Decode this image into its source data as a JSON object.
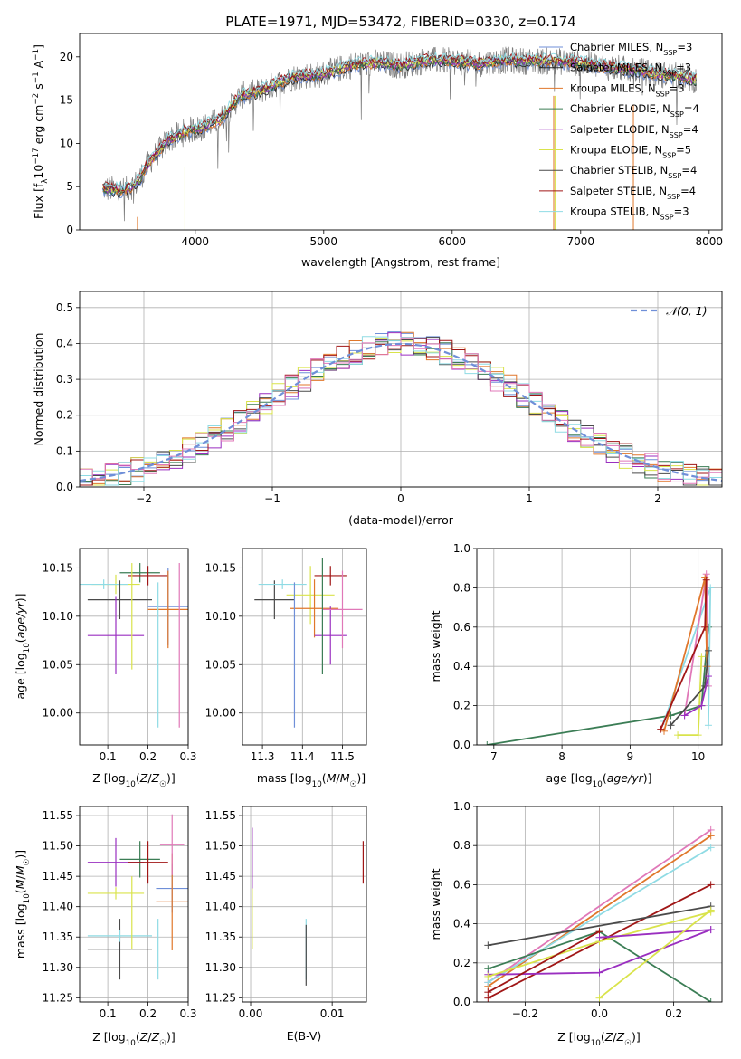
{
  "chart_data": [
    {
      "id": "spectrum",
      "type": "line",
      "title": "PLATE=1971, MJD=53472, FIBERID=0330, z=0.174",
      "xlabel": "wavelength [Angstrom, rest frame]",
      "ylabel_parts": [
        "Flux [f",
        "λ",
        "10",
        "−17",
        " erg cm",
        "−2",
        " s",
        "−1",
        " A",
        "−1",
        "]"
      ],
      "xlim": [
        3100,
        8100
      ],
      "ylim": [
        0,
        22.7
      ],
      "xticks": [
        4000,
        5000,
        6000,
        7000,
        8000
      ],
      "yticks": [
        0,
        5,
        10,
        15,
        20
      ],
      "grid": false,
      "legend_position": "upper right",
      "continuum": {
        "x": [
          3280,
          3450,
          3550,
          3650,
          3800,
          3950,
          4050,
          4200,
          4350,
          4500,
          4650,
          4800,
          5000,
          5200,
          5400,
          5600,
          5800,
          6000,
          6200,
          6400,
          6600,
          6800,
          7000,
          7200,
          7400,
          7600,
          7800,
          7900
        ],
        "y": [
          4.8,
          4.5,
          5.5,
          8.0,
          10.5,
          11.5,
          11.8,
          12.8,
          15.5,
          16.0,
          17.0,
          17.8,
          18.0,
          19.0,
          19.3,
          19.0,
          19.6,
          19.5,
          19.2,
          19.6,
          19.5,
          19.5,
          19.3,
          18.8,
          18.5,
          18.0,
          17.7,
          17.3
        ]
      },
      "series": [
        {
          "name": "Chabrier MILES",
          "nssp": "3",
          "color": "#6f8fd8"
        },
        {
          "name": "Salpeter MILES",
          "nssp": "3",
          "color": "#2b2b2b"
        },
        {
          "name": "Kroupa MILES",
          "nssp": "3",
          "color": "#e0772b"
        },
        {
          "name": "Chabrier ELODIE",
          "nssp": "4",
          "color": "#3b7d55"
        },
        {
          "name": "Salpeter ELODIE",
          "nssp": "4",
          "color": "#9a2fc0"
        },
        {
          "name": "Kroupa ELODIE",
          "nssp": "5",
          "color": "#d9e34b"
        },
        {
          "name": "Chabrier STELIB",
          "nssp": "4",
          "color": "#4a4a4a"
        },
        {
          "name": "Salpeter STELIB",
          "nssp": "4",
          "color": "#a01616"
        },
        {
          "name": "Kroupa STELIB",
          "nssp": "3",
          "color": "#8fdbe4"
        }
      ],
      "nssp_label": [
        "N",
        "SSP",
        "="
      ]
    },
    {
      "id": "residuals",
      "type": "histogram",
      "xlabel": "(data-model)/error",
      "ylabel": "Normed distribution",
      "xlim": [
        -2.5,
        2.5
      ],
      "ylim": [
        0,
        0.545
      ],
      "xticks": [
        -2,
        -1,
        0,
        1,
        2
      ],
      "yticks": [
        0,
        0.1,
        0.2,
        0.3,
        0.4,
        0.5
      ],
      "grid": true,
      "legend": "𝒩(0, 1)",
      "legend_position": "upper right",
      "bin_width": 0.1,
      "series_colors": [
        "#6f8fd8",
        "#e0772b",
        "#3b7d55",
        "#9a2fc0",
        "#d9e34b",
        "#4a4a4a",
        "#a01616",
        "#8fdbe4",
        "#e078b8"
      ],
      "gaussian": {
        "mean": 0,
        "sigma": 1,
        "color": "#6f8fd8"
      }
    },
    {
      "id": "age-vs-Z",
      "type": "errorbar",
      "xlabel": "Z [log10(Z/Z☉)]",
      "ylabel": "age  [log10(age/yr)]",
      "xlim": [
        0.03,
        0.3
      ],
      "ylim": [
        9.967,
        10.17
      ],
      "xticks": [
        0.1,
        0.2,
        0.3
      ],
      "yticks": [
        10.0,
        10.05,
        10.1,
        10.15
      ],
      "grid": true,
      "points": [
        {
          "x": 0.12,
          "xe": 0.06,
          "y": 10.133,
          "ye": 0.01,
          "c": "#d9e34b"
        },
        {
          "x": 0.09,
          "xe": 0.06,
          "y": 10.133,
          "ye": 0.005,
          "c": "#8fdbe4"
        },
        {
          "x": 0.13,
          "xe": 0.08,
          "y": 10.117,
          "ye": 0.02,
          "c": "#4a4a4a"
        },
        {
          "x": 0.12,
          "xe": 0.07,
          "y": 10.08,
          "ye": 0.04,
          "c": "#9a2fc0"
        },
        {
          "x": 0.18,
          "xe": 0.05,
          "y": 10.145,
          "ye": 0.01,
          "c": "#3b7d55"
        },
        {
          "x": 0.2,
          "xe": 0.05,
          "y": 10.142,
          "ye": 0.01,
          "c": "#a01616"
        },
        {
          "x": 0.25,
          "xe": 0.05,
          "y": 10.11,
          "ye": 0.04,
          "c": "#6f8fd8"
        },
        {
          "x": 0.25,
          "xe": 0.05,
          "y": 10.107,
          "ye": 0.04,
          "c": "#e0772b"
        },
        {
          "x": 0.16,
          "xe": 0.0,
          "y": 10.1,
          "ye": 0.055,
          "c": "#d9e34b"
        },
        {
          "x": 0.225,
          "xe": 0.0,
          "y": 10.06,
          "ye": 0.075,
          "c": "#8fdbe4"
        },
        {
          "x": 0.278,
          "xe": 0.0,
          "y": 10.07,
          "ye": 0.085,
          "c": "#e078b8"
        }
      ]
    },
    {
      "id": "age-vs-mass",
      "type": "errorbar",
      "xlabel": "mass [log10(M/M☉)]",
      "xlim": [
        11.25,
        11.56
      ],
      "ylim": [
        9.967,
        10.17
      ],
      "xticks": [
        11.3,
        11.4,
        11.5
      ],
      "yticks": [
        10.0,
        10.05,
        10.1,
        10.15
      ],
      "grid": true,
      "points": [
        {
          "x": 11.33,
          "xe": 0.05,
          "y": 10.117,
          "ye": 0.02,
          "c": "#4a4a4a"
        },
        {
          "x": 11.35,
          "xe": 0.06,
          "y": 10.133,
          "ye": 0.005,
          "c": "#8fdbe4"
        },
        {
          "x": 11.42,
          "xe": 0.06,
          "y": 10.122,
          "ye": 0.03,
          "c": "#d9e34b"
        },
        {
          "x": 11.43,
          "xe": 0.06,
          "y": 10.108,
          "ye": 0.03,
          "c": "#e0772b"
        },
        {
          "x": 11.47,
          "xe": 0.04,
          "y": 10.08,
          "ye": 0.03,
          "c": "#9a2fc0"
        },
        {
          "x": 11.47,
          "xe": 0.04,
          "y": 10.142,
          "ye": 0.01,
          "c": "#a01616"
        },
        {
          "x": 11.5,
          "xe": 0.05,
          "y": 10.107,
          "ye": 0.04,
          "c": "#e078b8"
        },
        {
          "x": 11.45,
          "xe": 0.0,
          "y": 10.1,
          "ye": 0.06,
          "c": "#3b7d55"
        },
        {
          "x": 11.38,
          "xe": 0.0,
          "y": 10.06,
          "ye": 0.075,
          "c": "#6f8fd8"
        }
      ]
    },
    {
      "id": "massweight-vs-age",
      "type": "line",
      "xlabel": "age  [log10(age/yr)]",
      "ylabel": "mass weight",
      "xlim": [
        6.75,
        10.35
      ],
      "ylim": [
        0,
        1
      ],
      "xticks": [
        7,
        8,
        9,
        10
      ],
      "yticks": [
        0,
        0.2,
        0.4,
        0.6,
        0.8,
        1.0
      ],
      "grid": true,
      "series": [
        {
          "c": "#3b7d55",
          "x": [
            6.9,
            9.6,
            10.05,
            10.15
          ],
          "y": [
            0.0,
            0.15,
            0.2,
            0.6
          ]
        },
        {
          "c": "#8fdbe4",
          "x": [
            9.5,
            10.18,
            10.15
          ],
          "y": [
            0.12,
            0.8,
            0.1
          ]
        },
        {
          "c": "#e078b8",
          "x": [
            9.8,
            10.12,
            10.15
          ],
          "y": [
            0.15,
            0.87,
            0.3
          ]
        },
        {
          "c": "#e0772b",
          "x": [
            9.5,
            10.1,
            10.13
          ],
          "y": [
            0.07,
            0.85,
            0.4
          ]
        },
        {
          "c": "#a01616",
          "x": [
            9.45,
            10.1,
            10.12
          ],
          "y": [
            0.08,
            0.6,
            0.84
          ]
        },
        {
          "c": "#d9e34b",
          "x": [
            9.7,
            10.0,
            10.05
          ],
          "y": [
            0.05,
            0.05,
            0.45
          ]
        },
        {
          "c": "#4a4a4a",
          "x": [
            9.6,
            10.1,
            10.15
          ],
          "y": [
            0.1,
            0.3,
            0.48
          ]
        },
        {
          "c": "#9a2fc0",
          "x": [
            9.8,
            10.05,
            10.15
          ],
          "y": [
            0.15,
            0.2,
            0.35
          ]
        }
      ]
    },
    {
      "id": "mass-vs-Z",
      "type": "errorbar",
      "xlabel": "Z [log10(Z/Z☉)]",
      "ylabel": "mass [log10(M/M☉)]",
      "xlim": [
        0.03,
        0.3
      ],
      "ylim": [
        11.243,
        11.565
      ],
      "xticks": [
        0.1,
        0.2,
        0.3
      ],
      "yticks": [
        11.25,
        11.3,
        11.35,
        11.4,
        11.45,
        11.5,
        11.55
      ],
      "grid": true,
      "points": [
        {
          "x": 0.13,
          "xe": 0.08,
          "y": 11.33,
          "ye": 0.05,
          "c": "#4a4a4a"
        },
        {
          "x": 0.13,
          "xe": 0.08,
          "y": 11.352,
          "ye": 0.01,
          "c": "#8fdbe4"
        },
        {
          "x": 0.12,
          "xe": 0.07,
          "y": 11.422,
          "ye": 0.01,
          "c": "#d9e34b"
        },
        {
          "x": 0.12,
          "xe": 0.07,
          "y": 11.473,
          "ye": 0.04,
          "c": "#9a2fc0"
        },
        {
          "x": 0.18,
          "xe": 0.05,
          "y": 11.478,
          "ye": 0.03,
          "c": "#3b7d55"
        },
        {
          "x": 0.2,
          "xe": 0.05,
          "y": 11.473,
          "ye": 0.035,
          "c": "#a01616"
        },
        {
          "x": 0.26,
          "xe": 0.04,
          "y": 11.43,
          "ye": 0.04,
          "c": "#6f8fd8"
        },
        {
          "x": 0.26,
          "xe": 0.04,
          "y": 11.408,
          "ye": 0.08,
          "c": "#e0772b"
        },
        {
          "x": 0.26,
          "xe": 0.03,
          "y": 11.502,
          "ye": 0.05,
          "c": "#e078b8"
        },
        {
          "x": 0.225,
          "xe": 0.0,
          "y": 11.33,
          "ye": 0.05,
          "c": "#8fdbe4"
        },
        {
          "x": 0.16,
          "xe": 0.0,
          "y": 11.39,
          "ye": 0.06,
          "c": "#d9e34b"
        }
      ]
    },
    {
      "id": "mass-vs-EBV",
      "type": "errorbar",
      "xlabel": "E(B-V)",
      "xlim": [
        -0.001,
        0.0142
      ],
      "ylim": [
        11.243,
        11.565
      ],
      "xticks": [
        0.0,
        0.01
      ],
      "xtick_labels": [
        "0.00",
        "0.01"
      ],
      "yticks": [
        11.25,
        11.3,
        11.35,
        11.4,
        11.45,
        11.5,
        11.55
      ],
      "grid": true,
      "points": [
        {
          "x": 0.0002,
          "xe": 0,
          "y": 11.48,
          "ye": 0.05,
          "c": "#9a2fc0"
        },
        {
          "x": 0.0002,
          "xe": 0,
          "y": 11.38,
          "ye": 0.05,
          "c": "#d9e34b"
        },
        {
          "x": 0.0068,
          "xe": 0,
          "y": 11.33,
          "ye": 0.05,
          "c": "#8fdbe4"
        },
        {
          "x": 0.0068,
          "xe": 0,
          "y": 11.32,
          "ye": 0.05,
          "c": "#4a4a4a"
        },
        {
          "x": 0.0138,
          "xe": 0,
          "y": 11.473,
          "ye": 0.035,
          "c": "#a01616"
        }
      ]
    },
    {
      "id": "massweight-vs-Z",
      "type": "line",
      "xlabel": "Z [log10(Z/Z☉)]",
      "ylabel": "mass weight",
      "xlim": [
        -0.33,
        0.33
      ],
      "ylim": [
        0,
        1
      ],
      "xticks": [
        -0.2,
        0.0,
        0.2
      ],
      "xtick_labels": [
        "−0.2",
        "0.0",
        "0.2"
      ],
      "yticks": [
        0,
        0.2,
        0.4,
        0.6,
        0.8,
        1.0
      ],
      "grid": true,
      "series": [
        {
          "c": "#e078b8",
          "x": [
            -0.3,
            0.3
          ],
          "y": [
            0.1,
            0.88
          ]
        },
        {
          "c": "#e0772b",
          "x": [
            -0.3,
            0.3
          ],
          "y": [
            0.08,
            0.85
          ]
        },
        {
          "c": "#8fdbe4",
          "x": [
            -0.3,
            0.3
          ],
          "y": [
            0.1,
            0.79
          ]
        },
        {
          "c": "#a01616",
          "x": [
            -0.3,
            0.3
          ],
          "y": [
            0.02,
            0.6
          ]
        },
        {
          "c": "#4a4a4a",
          "x": [
            -0.3,
            0.3
          ],
          "y": [
            0.29,
            0.49
          ]
        },
        {
          "c": "#3b7d55",
          "x": [
            -0.3,
            0.0,
            0.3
          ],
          "y": [
            0.17,
            0.36,
            0.0
          ]
        },
        {
          "c": "#9a2fc0",
          "x": [
            -0.3,
            0.0,
            0.3
          ],
          "y": [
            0.14,
            0.15,
            0.37
          ]
        },
        {
          "c": "#d9e34b",
          "x": [
            -0.3,
            0.0,
            0.3
          ],
          "y": [
            0.13,
            0.31,
            0.46
          ]
        },
        {
          "c": "#a01616",
          "x": [
            -0.3,
            0.0
          ],
          "y": [
            0.05,
            0.36
          ]
        },
        {
          "c": "#9a2fc0",
          "x": [
            0.0,
            0.3
          ],
          "y": [
            0.33,
            0.37
          ]
        },
        {
          "c": "#d9e34b",
          "x": [
            0.0,
            0.3
          ],
          "y": [
            0.02,
            0.47
          ]
        }
      ]
    }
  ]
}
